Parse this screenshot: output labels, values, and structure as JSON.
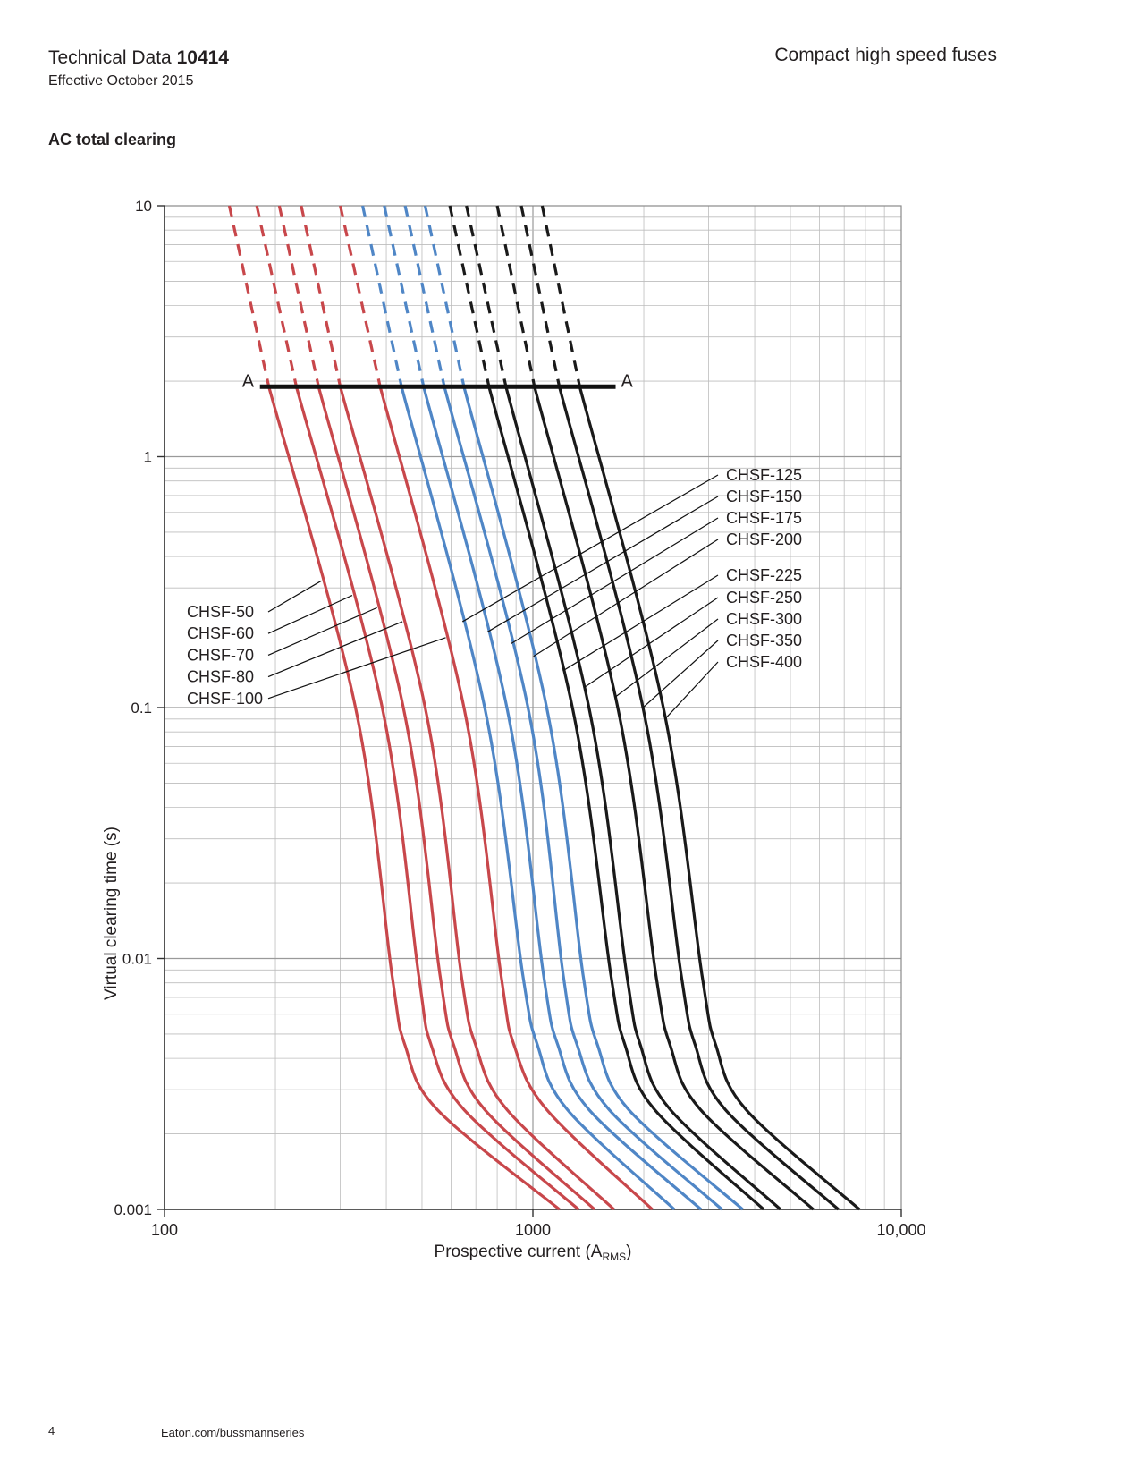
{
  "header": {
    "doc_title_prefix": "Technical Data",
    "doc_number": "10414",
    "effective": "Effective October 2015",
    "product": "Compact high speed fuses"
  },
  "section_title": "AC total clearing",
  "footer": {
    "page": "4",
    "url": "Eaton.com/bussmannseries"
  },
  "colors": {
    "red": "#c8474b",
    "blue": "#4f86c6",
    "black": "#1a1a1a",
    "grid": "#bdbdbd"
  },
  "chart_data": {
    "type": "line",
    "xscale": "log",
    "yscale": "log",
    "xlim": [
      100,
      10000
    ],
    "ylim": [
      0.001,
      10
    ],
    "xlabel": "Prospective current (A",
    "xlabel_sub": "RMS",
    "xlabel_end": ")",
    "ylabel": "Virtual clearing time (s)",
    "x_ticks": [
      {
        "v": 100,
        "label": "100"
      },
      {
        "v": 1000,
        "label": "1000"
      },
      {
        "v": 10000,
        "label": "10,000"
      }
    ],
    "y_ticks": [
      {
        "v": 10,
        "label": "10"
      },
      {
        "v": 1,
        "label": "1"
      },
      {
        "v": 0.1,
        "label": "0.1"
      },
      {
        "v": 0.01,
        "label": "0.01"
      },
      {
        "v": 0.001,
        "label": "0.001"
      }
    ],
    "grid": true,
    "dashed_above_time": 1.9,
    "reference_line": {
      "label": "A",
      "time": 1.9,
      "x_from": 192,
      "x_to": 1640
    },
    "series": [
      {
        "name": "CHSF-50",
        "color": "red",
        "points": [
          [
            150,
            10
          ],
          [
            192,
            1.9
          ],
          [
            330,
            0.1
          ],
          [
            415,
            0.0085
          ],
          [
            450,
            0.0045
          ],
          [
            550,
            0.0025
          ],
          [
            1180,
            0.001
          ]
        ]
      },
      {
        "name": "CHSF-60",
        "color": "red",
        "points": [
          [
            178,
            10
          ],
          [
            228,
            1.9
          ],
          [
            390,
            0.1
          ],
          [
            490,
            0.0085
          ],
          [
            530,
            0.0045
          ],
          [
            650,
            0.0025
          ],
          [
            1330,
            0.001
          ]
        ]
      },
      {
        "name": "CHSF-70",
        "color": "red",
        "points": [
          [
            205,
            10
          ],
          [
            262,
            1.9
          ],
          [
            445,
            0.1
          ],
          [
            560,
            0.0085
          ],
          [
            610,
            0.0045
          ],
          [
            740,
            0.0025
          ],
          [
            1470,
            0.001
          ]
        ]
      },
      {
        "name": "CHSF-80",
        "color": "red",
        "points": [
          [
            235,
            10
          ],
          [
            300,
            1.9
          ],
          [
            510,
            0.1
          ],
          [
            640,
            0.0085
          ],
          [
            700,
            0.0045
          ],
          [
            850,
            0.0025
          ],
          [
            1660,
            0.001
          ]
        ]
      },
      {
        "name": "CHSF-100",
        "color": "red",
        "points": [
          [
            300,
            10
          ],
          [
            385,
            1.9
          ],
          [
            650,
            0.1
          ],
          [
            820,
            0.0085
          ],
          [
            890,
            0.0045
          ],
          [
            1090,
            0.0025
          ],
          [
            2110,
            0.001
          ]
        ]
      },
      {
        "name": "CHSF-125",
        "color": "blue",
        "points": [
          [
            345,
            10
          ],
          [
            440,
            1.9
          ],
          [
            740,
            0.1
          ],
          [
            940,
            0.0085
          ],
          [
            1030,
            0.0045
          ],
          [
            1240,
            0.0025
          ],
          [
            2420,
            0.001
          ]
        ]
      },
      {
        "name": "CHSF-150",
        "color": "blue",
        "points": [
          [
            395,
            10
          ],
          [
            505,
            1.9
          ],
          [
            850,
            0.1
          ],
          [
            1070,
            0.0085
          ],
          [
            1170,
            0.0045
          ],
          [
            1420,
            0.0025
          ],
          [
            2860,
            0.001
          ]
        ]
      },
      {
        "name": "CHSF-175",
        "color": "blue",
        "points": [
          [
            450,
            10
          ],
          [
            575,
            1.9
          ],
          [
            970,
            0.1
          ],
          [
            1210,
            0.0085
          ],
          [
            1320,
            0.0045
          ],
          [
            1610,
            0.0025
          ],
          [
            3260,
            0.001
          ]
        ]
      },
      {
        "name": "CHSF-200",
        "color": "blue",
        "points": [
          [
            510,
            10
          ],
          [
            650,
            1.9
          ],
          [
            1090,
            0.1
          ],
          [
            1370,
            0.0085
          ],
          [
            1500,
            0.0045
          ],
          [
            1820,
            0.0025
          ],
          [
            3710,
            0.001
          ]
        ]
      },
      {
        "name": "CHSF-225",
        "color": "black",
        "points": [
          [
            595,
            10
          ],
          [
            760,
            1.9
          ],
          [
            1280,
            0.1
          ],
          [
            1630,
            0.0085
          ],
          [
            1780,
            0.0045
          ],
          [
            2140,
            0.0025
          ],
          [
            4230,
            0.001
          ]
        ]
      },
      {
        "name": "CHSF-250",
        "color": "black",
        "points": [
          [
            660,
            10
          ],
          [
            845,
            1.9
          ],
          [
            1420,
            0.1
          ],
          [
            1800,
            0.0085
          ],
          [
            1960,
            0.0045
          ],
          [
            2360,
            0.0025
          ],
          [
            4700,
            0.001
          ]
        ]
      },
      {
        "name": "CHSF-300",
        "color": "black",
        "points": [
          [
            800,
            10
          ],
          [
            1010,
            1.9
          ],
          [
            1700,
            0.1
          ],
          [
            2160,
            0.0085
          ],
          [
            2360,
            0.0045
          ],
          [
            2850,
            0.0025
          ],
          [
            5770,
            0.001
          ]
        ]
      },
      {
        "name": "CHSF-350",
        "color": "black",
        "points": [
          [
            930,
            10
          ],
          [
            1180,
            1.9
          ],
          [
            1990,
            0.1
          ],
          [
            2530,
            0.0085
          ],
          [
            2760,
            0.0045
          ],
          [
            3330,
            0.0025
          ],
          [
            6750,
            0.001
          ]
        ]
      },
      {
        "name": "CHSF-400",
        "color": "black",
        "points": [
          [
            1060,
            10
          ],
          [
            1340,
            1.9
          ],
          [
            2260,
            0.1
          ],
          [
            2880,
            0.0085
          ],
          [
            3140,
            0.0045
          ],
          [
            3790,
            0.0025
          ],
          [
            7700,
            0.001
          ]
        ]
      }
    ],
    "annotations_left": [
      "CHSF-50",
      "CHSF-60",
      "CHSF-70",
      "CHSF-80",
      "CHSF-100"
    ],
    "annotations_right": [
      "CHSF-125",
      "CHSF-150",
      "CHSF-175",
      "CHSF-200",
      "CHSF-225",
      "CHSF-250",
      "CHSF-300",
      "CHSF-350",
      "CHSF-400"
    ]
  }
}
